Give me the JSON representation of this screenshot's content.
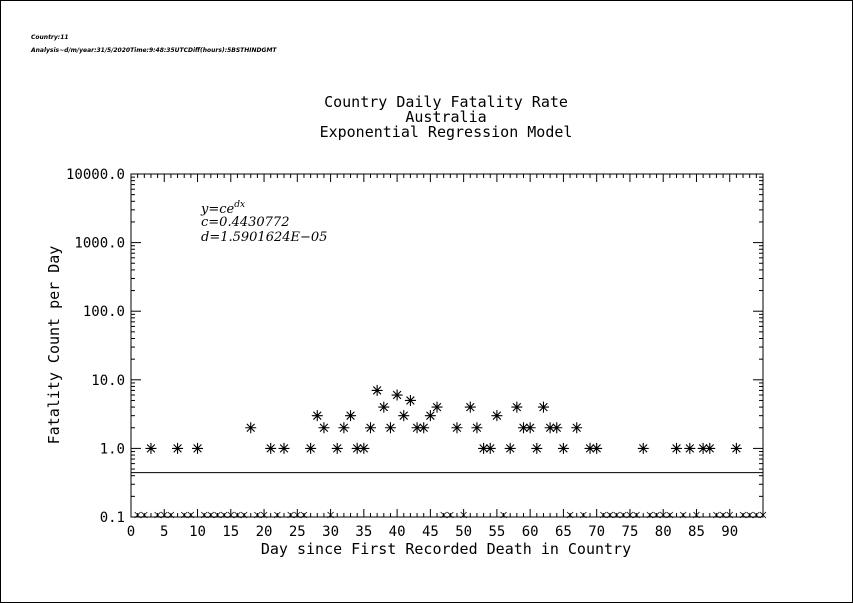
{
  "header": {
    "line1": "Country:11",
    "line2": "Analysis~d/m/year:31/5/2020Time:9:48:35UTCDiff(hours):5BSTHINDGMT"
  },
  "equation": {
    "formula": "y=ce^{dx}",
    "c_label": "c=0.4430772",
    "d_label": "d=1.5901624E−05"
  },
  "chart_data": {
    "type": "scatter",
    "title": "Country Daily Fatality Rate",
    "subtitle": "Australia",
    "subtitle2": "Exponential Regression Model",
    "xlabel": "Day since First Recorded Death in Country",
    "ylabel": "Fatality Count per Day",
    "xlim": [
      0,
      95
    ],
    "ylim": [
      0.1,
      10000
    ],
    "yscale": "log",
    "xticks": [
      0,
      5,
      10,
      15,
      20,
      25,
      30,
      35,
      40,
      45,
      50,
      55,
      60,
      65,
      70,
      75,
      80,
      85,
      90
    ],
    "yticks": [
      0.1,
      1.0,
      10.0,
      100.0,
      1000.0,
      10000.0
    ],
    "ytick_labels": [
      "0.1",
      "1.0",
      "10.0",
      "100.0",
      "1000.0",
      "10000.0"
    ],
    "marker": "asterisk",
    "series": [
      {
        "x": [
          3,
          7,
          10,
          18,
          21,
          23,
          27,
          28,
          29,
          31,
          32,
          33,
          34,
          35,
          36,
          37,
          38,
          39,
          40,
          41,
          42,
          43,
          44,
          45,
          46,
          49,
          51,
          52,
          53,
          54,
          55,
          57,
          58,
          59,
          60,
          61,
          62,
          63,
          64,
          65,
          67,
          69,
          70,
          77,
          82,
          84,
          86,
          87,
          91
        ],
        "y": [
          1,
          1,
          1,
          2,
          1,
          1,
          1,
          3,
          2,
          1,
          2,
          3,
          1,
          1,
          2,
          7,
          4,
          2,
          6,
          3,
          5,
          2,
          2,
          3,
          4,
          2,
          4,
          2,
          1,
          1,
          3,
          1,
          4,
          2,
          2,
          1,
          4,
          2,
          2,
          1,
          2,
          1,
          1,
          1,
          1,
          1,
          1,
          1,
          1
        ]
      }
    ],
    "zero_day_marker": "x",
    "regression": {
      "model": "exponential",
      "c": 0.4430772,
      "d": 1.5901624e-05
    }
  }
}
